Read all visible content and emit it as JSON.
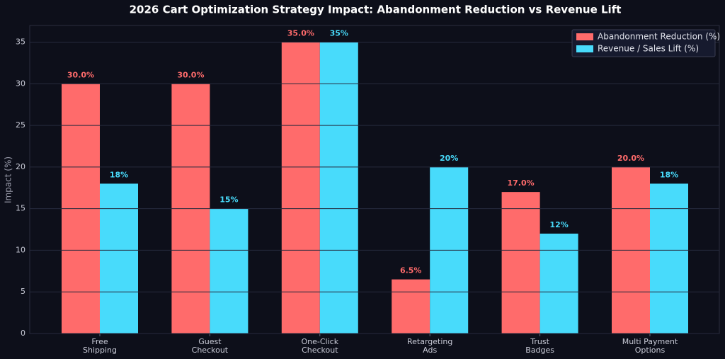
{
  "chart_data": {
    "type": "bar",
    "title": "2026 Cart Optimization Strategy Impact: Abandonment Reduction vs Revenue Lift",
    "y_label": "Impact (%)",
    "categories": [
      "Free\nShipping",
      "Guest\nCheckout",
      "One-Click\nCheckout",
      "Retargeting\nAds",
      "Trust\nBadges",
      "Multi Payment\nOptions"
    ],
    "series": [
      {
        "name": "Abandonment Reduction (%)",
        "color": "#ff6b6b",
        "values": [
          30,
          30,
          35,
          6.5,
          17,
          20
        ],
        "value_labels": [
          "30.0%",
          "30.0%",
          "35.0%",
          "6.5%",
          "17.0%",
          "20.0%"
        ]
      },
      {
        "name": "Revenue / Sales Lift (%)",
        "color": "#48dbfb",
        "values": [
          18,
          15,
          35,
          20,
          12,
          18
        ],
        "value_labels": [
          "18%",
          "15%",
          "35%",
          "20%",
          "12%",
          "18%"
        ]
      }
    ],
    "ylim": [
      0,
      37
    ],
    "yticks": [
      0,
      5,
      10,
      15,
      20,
      25,
      30,
      35
    ],
    "grid": true,
    "legend": "upper right"
  }
}
